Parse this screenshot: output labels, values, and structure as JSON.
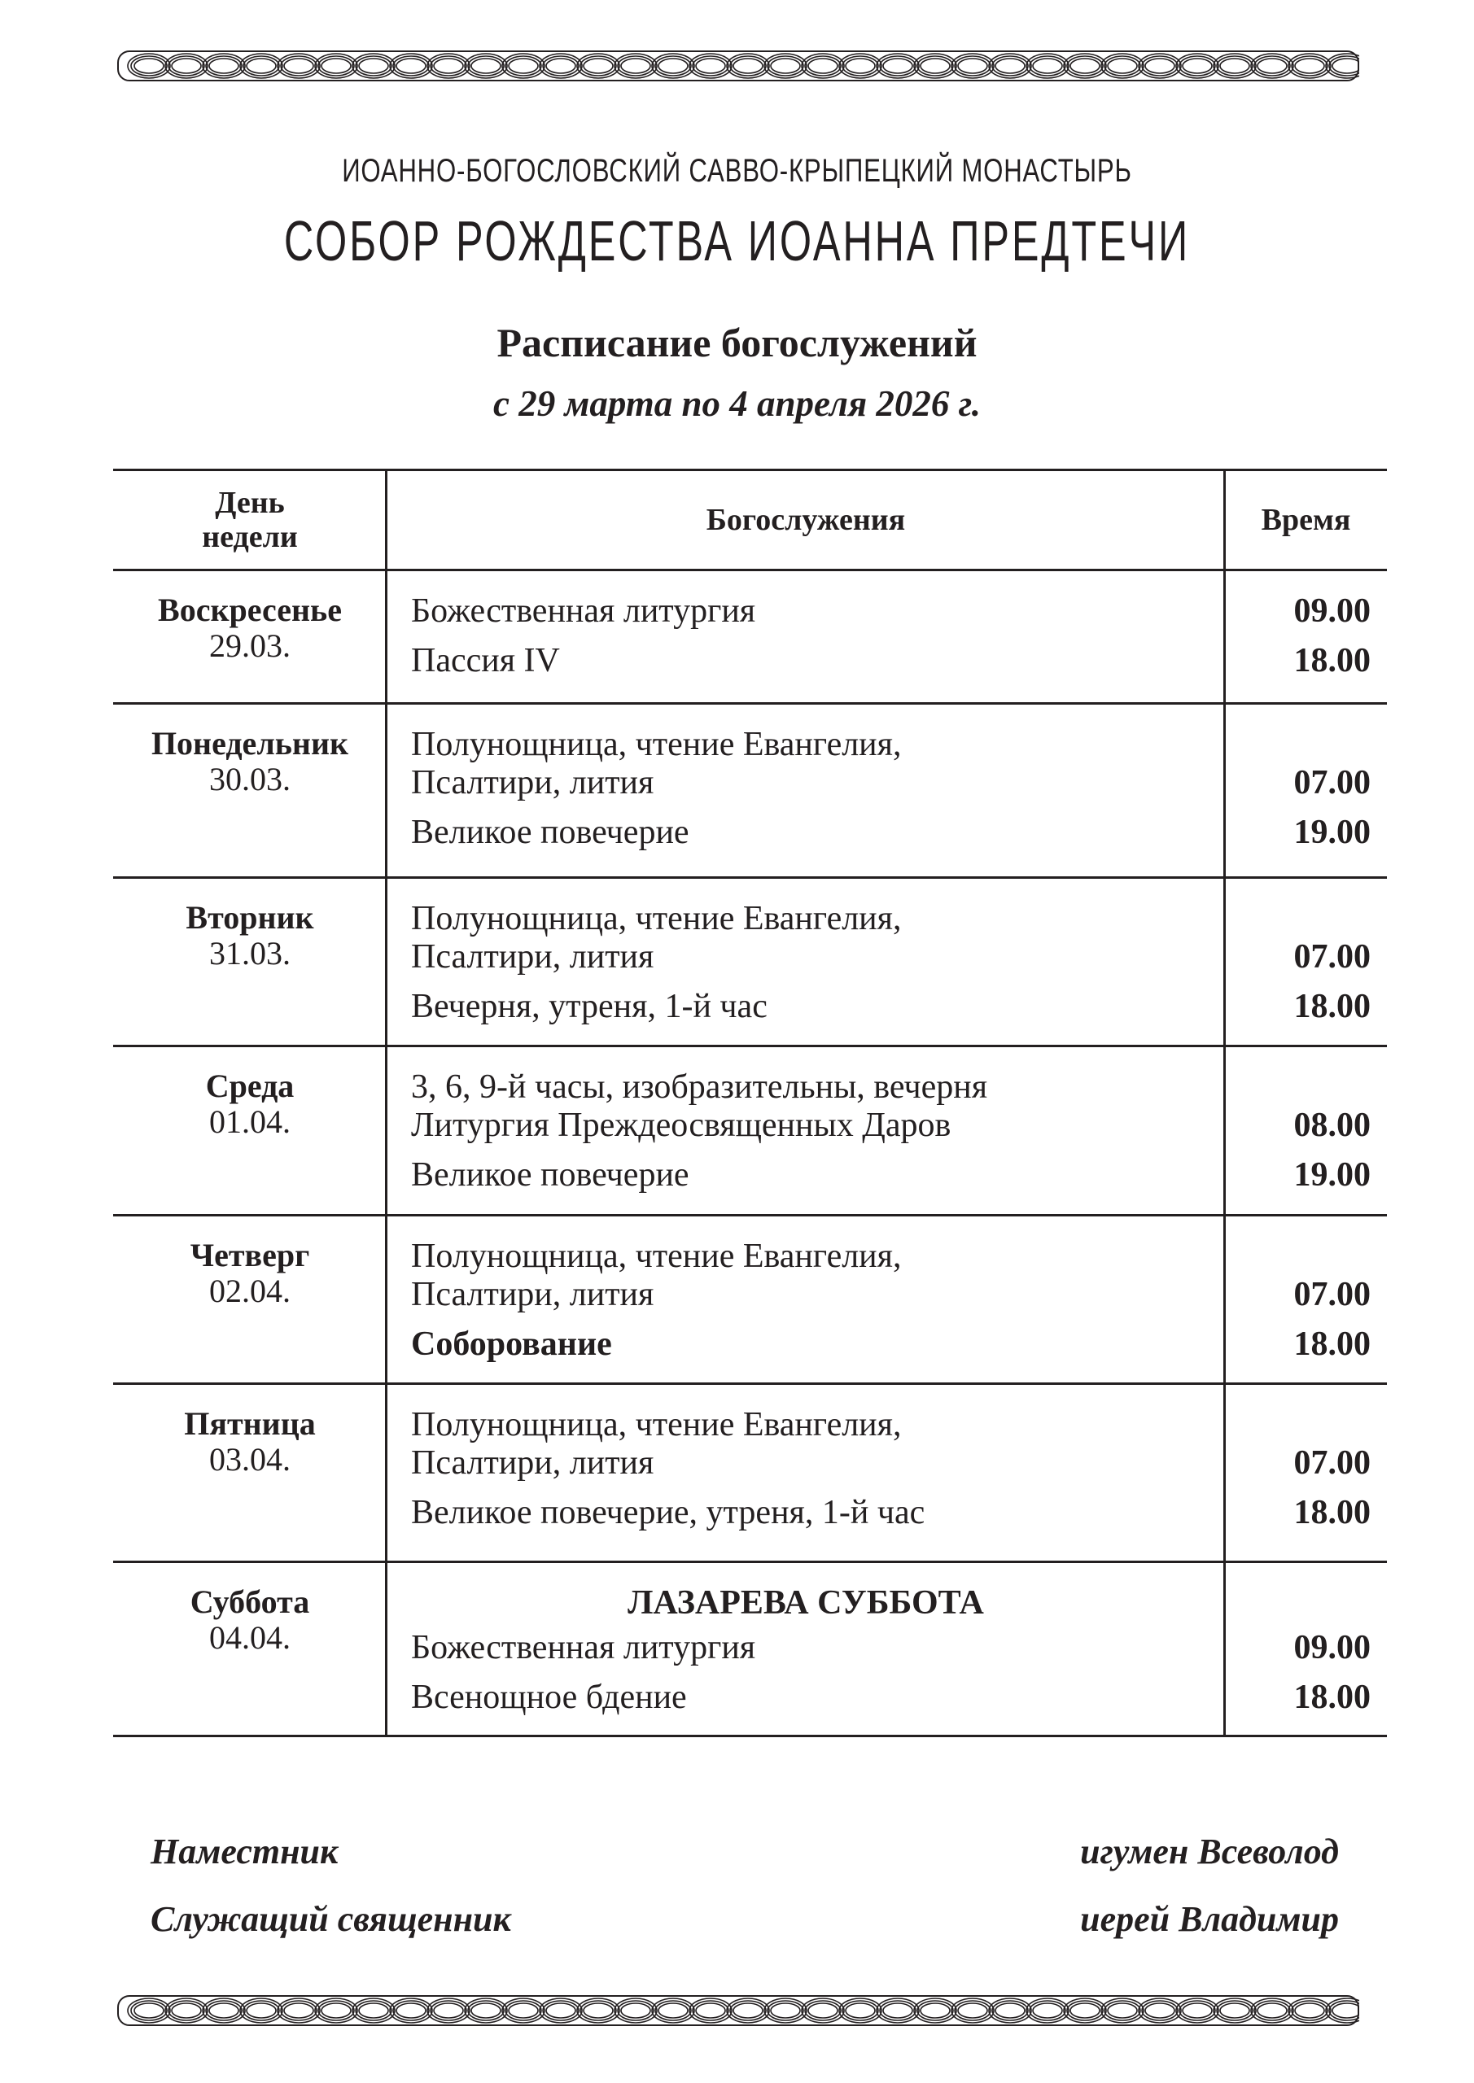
{
  "header": {
    "monastery": "ИОАННО-БОГОСЛОВСКИЙ САВВО-КРЫПЕЦКИЙ МОНАСТЫРЬ",
    "cathedral": "СОБОР РОЖДЕСТВА ИОАННА ПРЕДТЕЧИ",
    "title": "Расписание богослужений",
    "period": "с  29 марта по 4 апреля 2026  г."
  },
  "table": {
    "columns": {
      "day": "День недели",
      "services": "Богослужения",
      "time": "Время"
    },
    "rows": [
      {
        "day": "Воскресенье",
        "date": "29.03.",
        "special": "",
        "entries": [
          {
            "lines": [
              "Божественная литургия"
            ],
            "time": "09.00",
            "bold": false
          },
          {
            "lines": [
              "Пассия IV"
            ],
            "time": "18.00",
            "bold": false
          }
        ]
      },
      {
        "day": "Понедельник",
        "date": "30.03.",
        "special": "",
        "entries": [
          {
            "lines": [
              "Полунощница, чтение Евангелия,",
              "Псалтири, лития"
            ],
            "time": "07.00",
            "bold": false
          },
          {
            "lines": [
              "Великое повечерие"
            ],
            "time": "19.00",
            "bold": false
          }
        ]
      },
      {
        "day": "Вторник",
        "date": "31.03.",
        "special": "",
        "entries": [
          {
            "lines": [
              "Полунощница, чтение Евангелия,",
              "Псалтири, лития"
            ],
            "time": "07.00",
            "bold": false
          },
          {
            "lines": [
              "Вечерня, утреня, 1-й час"
            ],
            "time": "18.00",
            "bold": false
          }
        ]
      },
      {
        "day": "Среда",
        "date": "01.04.",
        "special": "",
        "entries": [
          {
            "lines": [
              "3, 6, 9-й часы, изобразительны, вечерня",
              "Литургия Преждеосвященных Даров"
            ],
            "time": "08.00",
            "bold": false
          },
          {
            "lines": [
              "Великое повечерие"
            ],
            "time": "19.00",
            "bold": false
          }
        ]
      },
      {
        "day": "Четверг",
        "date": "02.04.",
        "special": "",
        "entries": [
          {
            "lines": [
              "Полунощница, чтение Евангелия,",
              "Псалтири, лития"
            ],
            "time": "07.00",
            "bold": false
          },
          {
            "lines": [
              "Соборование"
            ],
            "time": "18.00",
            "bold": true
          }
        ]
      },
      {
        "day": "Пятница",
        "date": "03.04.",
        "special": "",
        "entries": [
          {
            "lines": [
              "Полунощница, чтение Евангелия,",
              "Псалтири, лития"
            ],
            "time": "07.00",
            "bold": false
          },
          {
            "lines": [
              "Великое повечерие, утреня, 1-й час"
            ],
            "time": "18.00",
            "bold": false
          }
        ]
      },
      {
        "day": "Суббота",
        "date": "04.04.",
        "special": "ЛАЗАРЕВА  СУББОТА",
        "entries": [
          {
            "lines": [
              "Божественная литургия"
            ],
            "time": "09.00",
            "bold": false
          },
          {
            "lines": [
              "Всенощное бдение"
            ],
            "time": "18.00",
            "bold": false
          }
        ]
      }
    ]
  },
  "footer": {
    "role1": "Наместник",
    "name1": "игумен Всеволод",
    "role2": "Служащий священник",
    "name2": "иерей Владимир"
  },
  "colors": {
    "ink": "#231f20",
    "paper": "#ffffff"
  },
  "icons": {
    "ornament": "interlace-border-ornament"
  }
}
